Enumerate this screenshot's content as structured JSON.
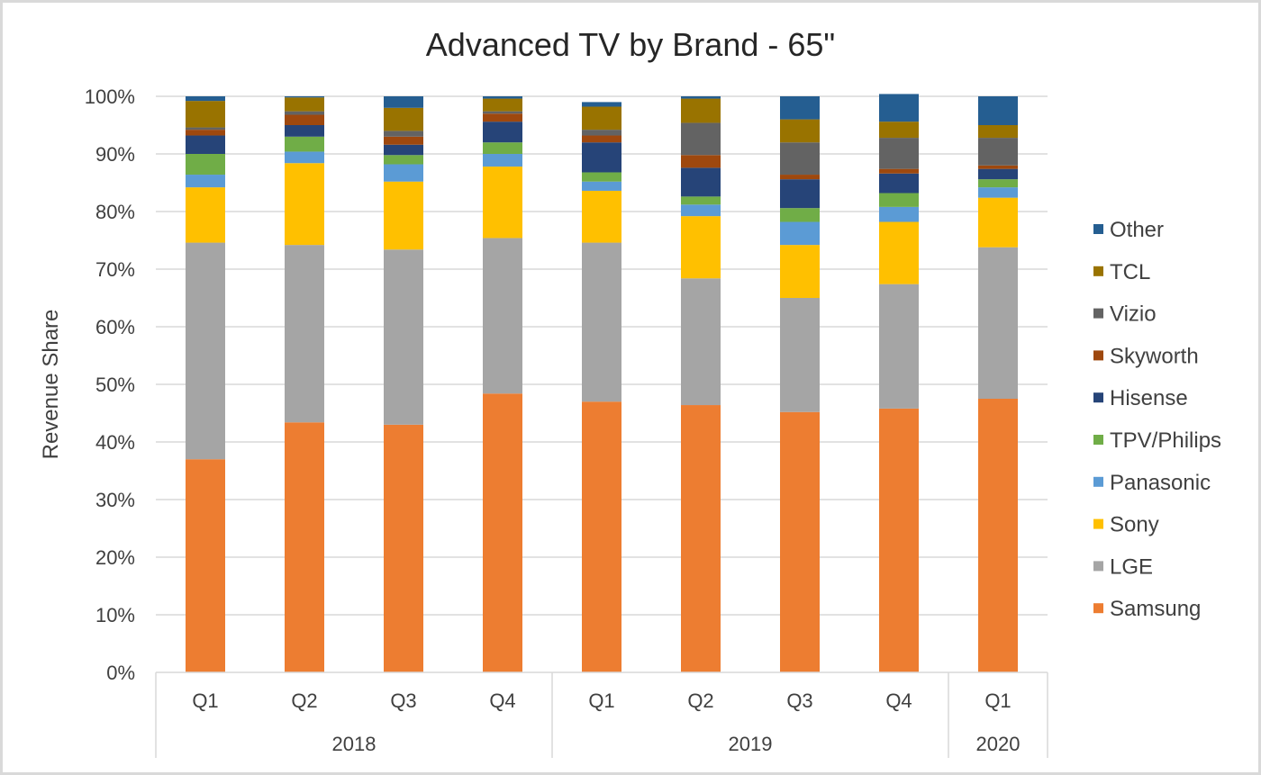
{
  "chart_data": {
    "type": "bar",
    "stacked": true,
    "title": "Advanced TV by Brand - 65\"",
    "ylabel": "Revenue Share",
    "xlabel": "",
    "ylim": [
      0,
      100
    ],
    "y_ticks": [
      "0%",
      "10%",
      "20%",
      "30%",
      "40%",
      "50%",
      "60%",
      "70%",
      "80%",
      "90%",
      "100%"
    ],
    "grid": true,
    "legend_position": "right",
    "categories": [
      "Q1",
      "Q2",
      "Q3",
      "Q4",
      "Q1",
      "Q2",
      "Q3",
      "Q4",
      "Q1"
    ],
    "year_groups": [
      {
        "label": "2018",
        "count": 4
      },
      {
        "label": "2019",
        "count": 4
      },
      {
        "label": "2020",
        "count": 1
      }
    ],
    "series": [
      {
        "name": "Samsung",
        "color": "#ED7D31",
        "values": [
          37.0,
          43.4,
          43.0,
          48.4,
          47.0,
          46.4,
          45.2,
          45.8,
          47.5
        ]
      },
      {
        "name": "LGE",
        "color": "#A5A5A5",
        "values": [
          37.6,
          30.8,
          30.4,
          27.0,
          27.6,
          22.0,
          19.8,
          21.6,
          26.3
        ]
      },
      {
        "name": "Sony",
        "color": "#FFC000",
        "values": [
          9.6,
          14.2,
          11.8,
          12.4,
          9.0,
          10.8,
          9.2,
          10.8,
          8.6
        ]
      },
      {
        "name": "Panasonic",
        "color": "#5B9BD5",
        "values": [
          2.2,
          2.0,
          3.0,
          2.2,
          1.6,
          2.0,
          4.0,
          2.6,
          1.8
        ]
      },
      {
        "name": "TPV/Philips",
        "color": "#70AD47",
        "values": [
          3.6,
          2.6,
          1.6,
          2.0,
          1.6,
          1.4,
          2.4,
          2.4,
          1.4
        ]
      },
      {
        "name": "Hisense",
        "color": "#264478",
        "values": [
          3.2,
          2.0,
          1.8,
          3.6,
          5.2,
          5.0,
          5.0,
          3.4,
          1.8
        ]
      },
      {
        "name": "Skyworth",
        "color": "#9E480E",
        "values": [
          1.0,
          1.8,
          1.4,
          1.4,
          1.2,
          2.2,
          0.8,
          0.8,
          0.6
        ]
      },
      {
        "name": "Vizio",
        "color": "#636363",
        "values": [
          0.4,
          0.6,
          1.0,
          0.4,
          1.0,
          5.6,
          5.6,
          5.4,
          4.8
        ]
      },
      {
        "name": "TCL",
        "color": "#997300",
        "values": [
          4.6,
          2.4,
          4.0,
          2.2,
          4.0,
          4.2,
          4.0,
          2.8,
          2.2
        ]
      },
      {
        "name": "Other",
        "color": "#255E91",
        "values": [
          0.8,
          0.2,
          2.0,
          0.4,
          0.8,
          0.4,
          4.0,
          4.8,
          5.0
        ]
      }
    ],
    "legend_order": [
      "Other",
      "TCL",
      "Vizio",
      "Skyworth",
      "Hisense",
      "TPV/Philips",
      "Panasonic",
      "Sony",
      "LGE",
      "Samsung"
    ]
  }
}
